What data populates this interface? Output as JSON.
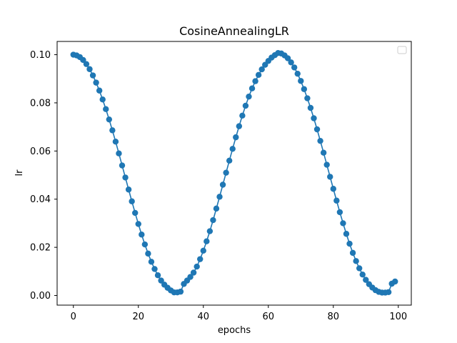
{
  "chart_data": {
    "type": "line",
    "title": "CosineAnnealingLR",
    "xlabel": "epochs",
    "ylabel": "lr",
    "xlim": [
      -5,
      104
    ],
    "ylim": [
      -0.004,
      0.1055
    ],
    "xticks": [
      0,
      20,
      40,
      60,
      80,
      100
    ],
    "xtick_labels": [
      "0",
      "20",
      "40",
      "60",
      "80",
      "100"
    ],
    "yticks": [
      0.0,
      0.02,
      0.04,
      0.06,
      0.08,
      0.1
    ],
    "ytick_labels": [
      "0.00",
      "0.02",
      "0.04",
      "0.06",
      "0.08",
      "0.10"
    ],
    "grid": false,
    "legend": {
      "placement": "top-right",
      "entries": []
    },
    "colors": {
      "series": "#1f77b4"
    },
    "series": [
      {
        "marker": "circle",
        "x": [
          0,
          1,
          2,
          3,
          4,
          5,
          6,
          7,
          8,
          9,
          10,
          11,
          12,
          13,
          14,
          15,
          16,
          17,
          18,
          19,
          20,
          21,
          22,
          23,
          24,
          25,
          26,
          27,
          28,
          29,
          30,
          31,
          32,
          33,
          34,
          35,
          36,
          37,
          38,
          39,
          40,
          41,
          42,
          43,
          44,
          45,
          46,
          47,
          48,
          49,
          50,
          51,
          52,
          53,
          54,
          55,
          56,
          57,
          58,
          59,
          60,
          61,
          62,
          63,
          64,
          65,
          66,
          67,
          68,
          69,
          70,
          71,
          72,
          73,
          74,
          75,
          76,
          77,
          78,
          79,
          80,
          81,
          82,
          83,
          84,
          85,
          86,
          87,
          88,
          89,
          90,
          91,
          92,
          93,
          94,
          95,
          96,
          97,
          98,
          99
        ],
        "y": [
          0.1,
          0.0997,
          0.099,
          0.0978,
          0.0961,
          0.094,
          0.0914,
          0.0884,
          0.0851,
          0.0814,
          0.0774,
          0.0731,
          0.0686,
          0.0639,
          0.059,
          0.054,
          0.049,
          0.044,
          0.0391,
          0.0343,
          0.0297,
          0.0253,
          0.0212,
          0.0174,
          0.014,
          0.011,
          0.0084,
          0.0062,
          0.0045,
          0.0032,
          0.0021,
          0.0013,
          0.0013,
          0.0016,
          0.0048,
          0.0062,
          0.0077,
          0.0095,
          0.012,
          0.0151,
          0.0186,
          0.0225,
          0.0267,
          0.0313,
          0.0361,
          0.041,
          0.046,
          0.051,
          0.056,
          0.0609,
          0.0657,
          0.0703,
          0.0747,
          0.0788,
          0.0826,
          0.086,
          0.089,
          0.0916,
          0.0939,
          0.0958,
          0.0974,
          0.0988,
          0.0998,
          0.1007,
          0.1005,
          0.0997,
          0.0985,
          0.0968,
          0.0947,
          0.0921,
          0.0891,
          0.0857,
          0.0819,
          0.0779,
          0.0736,
          0.069,
          0.0642,
          0.0593,
          0.0543,
          0.0493,
          0.0443,
          0.0394,
          0.0346,
          0.03,
          0.0256,
          0.0215,
          0.0177,
          0.0143,
          0.0113,
          0.0087,
          0.0065,
          0.0047,
          0.0033,
          0.0022,
          0.0015,
          0.0012,
          0.0012,
          0.0014,
          0.0049,
          0.0058
        ]
      }
    ]
  }
}
